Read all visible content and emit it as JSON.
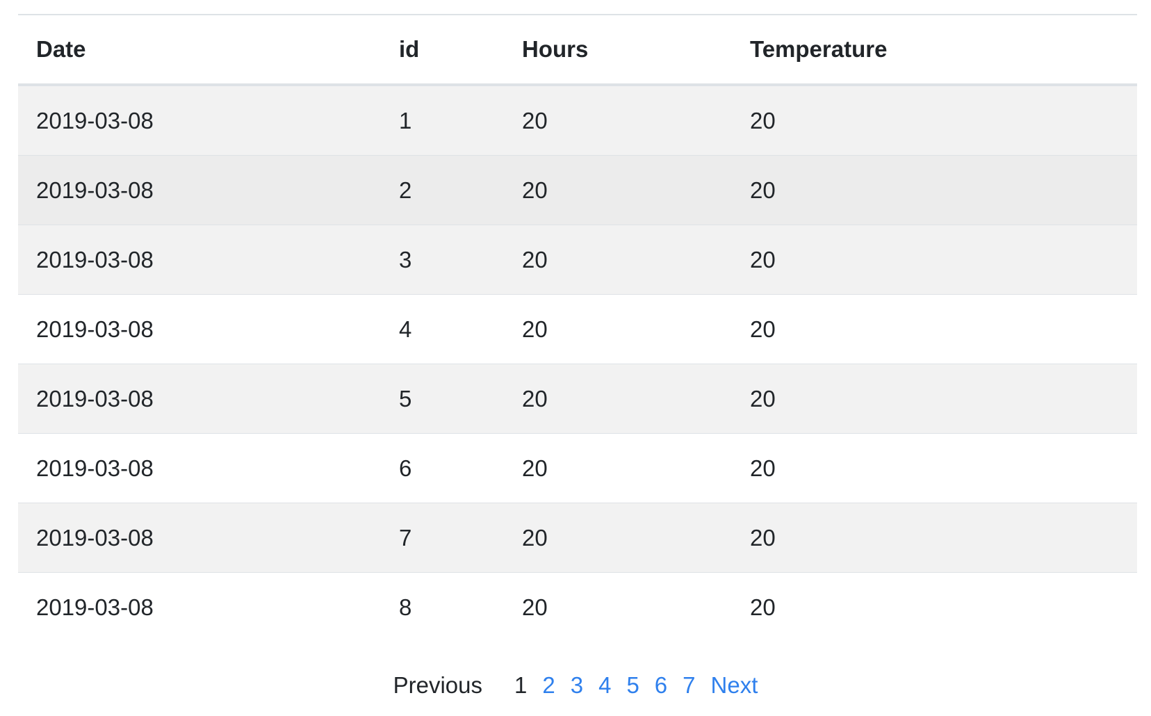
{
  "table": {
    "headers": {
      "date": "Date",
      "id": "id",
      "hours": "Hours",
      "temperature": "Temperature"
    },
    "rows": [
      {
        "date": "2019-03-08",
        "id": "1",
        "hours": "20",
        "temperature": "20"
      },
      {
        "date": "2019-03-08",
        "id": "2",
        "hours": "20",
        "temperature": "20"
      },
      {
        "date": "2019-03-08",
        "id": "3",
        "hours": "20",
        "temperature": "20"
      },
      {
        "date": "2019-03-08",
        "id": "4",
        "hours": "20",
        "temperature": "20"
      },
      {
        "date": "2019-03-08",
        "id": "5",
        "hours": "20",
        "temperature": "20"
      },
      {
        "date": "2019-03-08",
        "id": "6",
        "hours": "20",
        "temperature": "20"
      },
      {
        "date": "2019-03-08",
        "id": "7",
        "hours": "20",
        "temperature": "20"
      },
      {
        "date": "2019-03-08",
        "id": "8",
        "hours": "20",
        "temperature": "20"
      }
    ]
  },
  "pagination": {
    "previous_label": "Previous",
    "pages": [
      "1",
      "2",
      "3",
      "4",
      "5",
      "6",
      "7"
    ],
    "current_page": "1",
    "next_label": "Next"
  },
  "colors": {
    "link": "#2f80ed",
    "stripe": "#f2f2f2",
    "hover_row": "#ececec",
    "border": "#dee2e6",
    "text": "#212529"
  }
}
